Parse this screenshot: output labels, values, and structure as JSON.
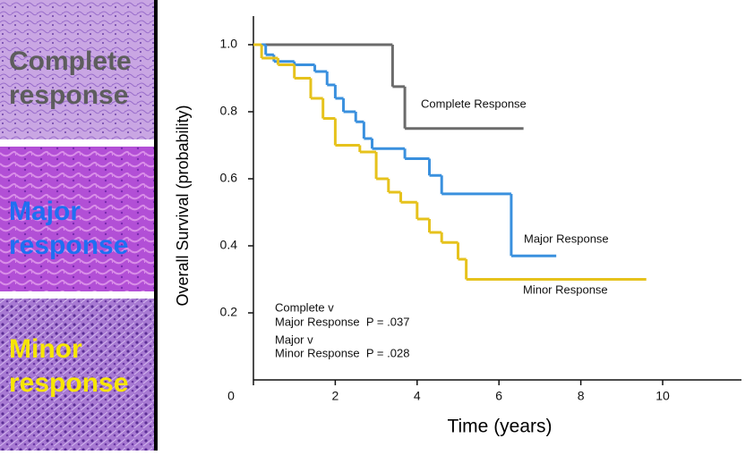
{
  "panels": [
    {
      "lines": [
        "Complete",
        "response"
      ],
      "color": "#5d5d5d"
    },
    {
      "lines": [
        "Major",
        "response"
      ],
      "color": "#1f6ff2"
    },
    {
      "lines": [
        "Minor",
        "response"
      ],
      "color": "#f7e600"
    }
  ],
  "chart_data": {
    "type": "step",
    "ylabel": "Overall Survival (probability)",
    "xlabel": "Time (years)",
    "xlim": [
      0,
      12
    ],
    "ylim": [
      0,
      1.04
    ],
    "xticks": [
      0,
      2,
      4,
      6,
      8,
      10
    ],
    "yticks": [
      {
        "value": 1,
        "label": "1.0"
      },
      0.8,
      0.6,
      0.4,
      0.2
    ],
    "series": [
      {
        "name": "Complete Response",
        "color": "#6b6b6b",
        "x": [
          0,
          3.4,
          3.7,
          6.6
        ],
        "values": [
          1.0,
          0.875,
          0.75,
          0.75
        ]
      },
      {
        "name": "Major Response",
        "color": "#3a90de",
        "x": [
          0,
          0.3,
          0.5,
          1,
          1.5,
          1.8,
          2,
          2.2,
          2.5,
          2.7,
          2.9,
          3.7,
          4.3,
          4.6,
          6.3,
          7.4
        ],
        "values": [
          1.0,
          0.97,
          0.95,
          0.94,
          0.92,
          0.88,
          0.84,
          0.8,
          0.77,
          0.72,
          0.69,
          0.66,
          0.61,
          0.555,
          0.37,
          0.37
        ]
      },
      {
        "name": "Minor Response",
        "color": "#e6c21c",
        "x": [
          0,
          0.2,
          0.6,
          1,
          1.4,
          1.7,
          2,
          2.6,
          3,
          3.3,
          3.6,
          4,
          4.3,
          4.6,
          5,
          5.2,
          9.6
        ],
        "values": [
          1.0,
          0.96,
          0.94,
          0.9,
          0.84,
          0.78,
          0.7,
          0.68,
          0.6,
          0.56,
          0.53,
          0.48,
          0.44,
          0.41,
          0.36,
          0.3,
          0.3
        ]
      }
    ],
    "annotations": [
      "Complete v",
      "Major Response  P = .037",
      "Major v",
      "Minor Response  P = .028"
    ]
  }
}
